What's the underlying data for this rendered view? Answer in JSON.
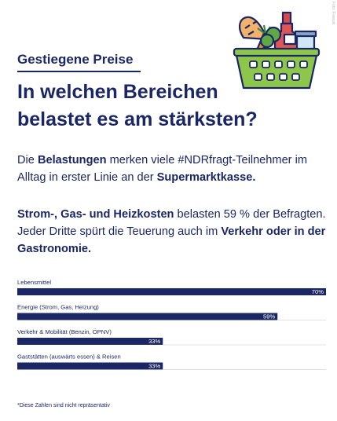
{
  "kicker": "Gestiegene Preise",
  "headline": "In welchen Bereichen belastet es am stärksten?",
  "credit": "Foto: Freepik",
  "paragraph1": [
    {
      "text": "Die ",
      "bold": false
    },
    {
      "text": "Belastungen",
      "bold": true
    },
    {
      "text": " merken viele #NDRfragt-Teilnehmer im Alltag in erster Linie an der ",
      "bold": false
    },
    {
      "text": "Supermarktkasse.",
      "bold": true
    }
  ],
  "paragraph2": [
    {
      "text": "Strom-, Gas- und Heizkosten",
      "bold": true
    },
    {
      "text": " belasten 59 % der Befragten. Jeder Dritte spürt die Teuerung auch im ",
      "bold": false
    },
    {
      "text": "Verkehr oder in der Gastronomie.",
      "bold": true
    }
  ],
  "colors": {
    "navy": "#1b2664",
    "divider": "#e2e2e2",
    "basket_green": "#8ec64c"
  },
  "illustration_icon": "grocery-basket-icon",
  "chart_data": {
    "type": "bar",
    "orientation": "horizontal",
    "categories": [
      "Lebensmittel",
      "Energie (Strom, Gas, Heizung)",
      "Verkehr & Mobilität (Benzin, ÖPNV)",
      "Gaststätten (auswärts essen) & Reisen"
    ],
    "values": [
      70,
      59,
      33,
      33
    ],
    "value_labels": [
      "70%",
      "59%",
      "33%",
      "33%"
    ],
    "xlim": [
      0,
      70
    ],
    "unit": "%",
    "grid": false,
    "legend": "none"
  },
  "footnote": "*Diese Zahlen sind nicht repräsentativ"
}
